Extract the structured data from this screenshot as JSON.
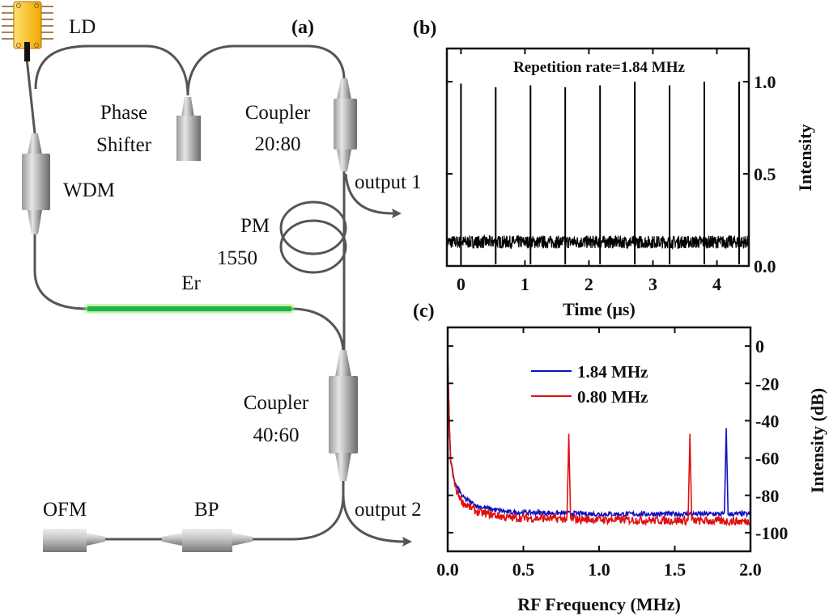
{
  "diagram": {
    "panel_label": "(a)",
    "labels": {
      "ld": "LD",
      "phase_shifter_1": "Phase",
      "phase_shifter_2": "Shifter",
      "coupler1_1": "Coupler",
      "coupler1_2": "20:80",
      "wdm": "WDM",
      "output1": "output 1",
      "pm_1": "PM",
      "pm_2": "1550",
      "er": "Er",
      "coupler2_1": "Coupler",
      "coupler2_2": "40:60",
      "output2": "output 2",
      "ofm": "OFM",
      "bp": "BP"
    },
    "colors": {
      "fiber": "#555555",
      "er_fiber": "#1db34a",
      "ld_body": "#f5b800"
    }
  },
  "chart_data": [
    {
      "panel_label": "(b)",
      "type": "line",
      "annotation": "Repetition rate=1.84 MHz",
      "xlabel": "Time (μs)",
      "ylabel": "Intensity",
      "xlim": [
        -0.22,
        4.5
      ],
      "ylim": [
        0.0,
        1.18
      ],
      "xticks": [
        "0",
        "1",
        "2",
        "3",
        "4"
      ],
      "xtick_values": [
        0,
        1,
        2,
        3,
        4
      ],
      "yticks": [
        "0.0",
        "0.5",
        "1.0"
      ],
      "ytick_values": [
        0,
        0.5,
        1.0
      ],
      "y_axis_side": "right",
      "grid": false,
      "color": "#000000",
      "pulse_times": [
        0,
        0.543,
        1.087,
        1.63,
        2.174,
        2.717,
        3.261,
        3.804,
        4.348
      ],
      "pulse_peaks": [
        0.99,
        0.97,
        0.98,
        0.97,
        0.98,
        1.0,
        0.98,
        1.0,
        1.0
      ],
      "baseline": 0.13
    },
    {
      "panel_label": "(c)",
      "type": "line",
      "xlabel": "RF Frequency (MHz)",
      "ylabel": "Intensity (dB)",
      "xlim": [
        0,
        2.0
      ],
      "ylim": [
        -110,
        10
      ],
      "xticks": [
        "0.0",
        "0.5",
        "1.0",
        "1.5",
        "2.0"
      ],
      "xtick_values": [
        0,
        0.5,
        1.0,
        1.5,
        2.0
      ],
      "yticks": [
        "0",
        "-20",
        "-40",
        "-60",
        "-80",
        "-100"
      ],
      "ytick_values": [
        0,
        -20,
        -40,
        -60,
        -80,
        -100
      ],
      "y_axis_side": "right",
      "grid": false,
      "legend": "top-center",
      "series": [
        {
          "name": "1.84 MHz",
          "color": "#1010c0",
          "points": [
            [
              0,
              -5
            ],
            [
              0.01,
              -40
            ],
            [
              0.02,
              -62
            ],
            [
              0.05,
              -74
            ],
            [
              0.1,
              -81
            ],
            [
              0.2,
              -86
            ],
            [
              0.4,
              -89
            ],
            [
              1.0,
              -90
            ],
            [
              2.0,
              -90
            ]
          ],
          "peaks": [
            [
              1.84,
              -44
            ]
          ]
        },
        {
          "name": "0.80 MHz",
          "color": "#e01010",
          "points": [
            [
              0,
              -5
            ],
            [
              0.01,
              -40
            ],
            [
              0.02,
              -62
            ],
            [
              0.05,
              -76
            ],
            [
              0.1,
              -84
            ],
            [
              0.2,
              -89
            ],
            [
              0.4,
              -92
            ],
            [
              1.0,
              -93
            ],
            [
              2.0,
              -94
            ]
          ],
          "peaks": [
            [
              0.8,
              -47
            ],
            [
              1.6,
              -47
            ]
          ]
        }
      ]
    }
  ]
}
